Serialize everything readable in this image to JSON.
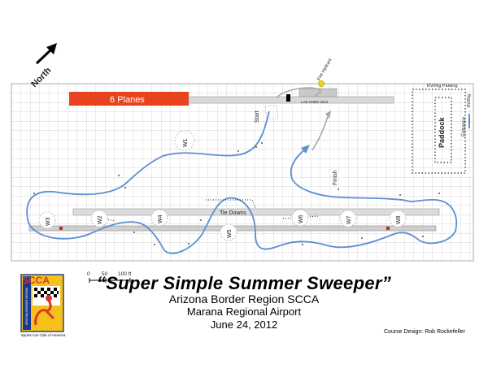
{
  "map": {
    "north_label": "North",
    "planes_label": "6 Planes",
    "start_label": "Start",
    "finish_label": "Finish",
    "fire_hydrant_label": "Fire Hydrant",
    "paddock_label": "Paddock",
    "entrance_label": "Entrance",
    "rv_rig_parking_label": "RV/Rig Parking",
    "rv_rig_label": "RV/Rig",
    "tie_downs_label": "Tie Downs",
    "building_label": "LAB SHED 2012",
    "waypoints": [
      "W1",
      "W2",
      "W3",
      "W4",
      "W5",
      "W6",
      "W7",
      "W8"
    ],
    "colors": {
      "course": "#5b8fd0",
      "planes": "#e8431f",
      "grid": "#c8c8c8",
      "hydrant": "#f5d50a",
      "cones": "#cc2222"
    }
  },
  "scale": {
    "ticks": [
      "0",
      "50",
      "100 ft"
    ]
  },
  "title": "“Super Simple Summer Sweeper”",
  "subtitle1": "Arizona Border Region SCCA",
  "subtitle2": "Marana Regional Airport",
  "subtitle3": "June 24, 2012",
  "designer": "Course Design:  Rob Rockefeller",
  "logo": {
    "text": "SCCA",
    "org": "Sports Car Club of America",
    "region": "ARIZONA BORDER REGION"
  }
}
